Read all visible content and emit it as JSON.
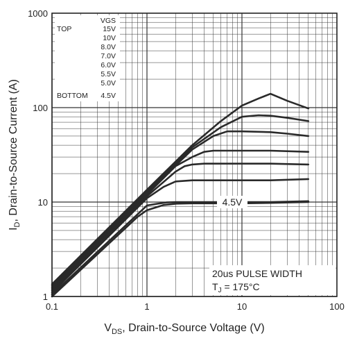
{
  "chart_data": {
    "type": "line",
    "xscale": "log",
    "yscale": "log",
    "xlim": [
      0.1,
      100
    ],
    "ylim": [
      1,
      1000
    ],
    "grid": true,
    "xlabel": {
      "main": "V",
      "sub": "DS",
      "rest": ", Drain-to-Source Voltage (V)"
    },
    "ylabel": {
      "main": "I",
      "sub": "D",
      "rest": ", Drain-to-Source Current (A)"
    },
    "x_ticks": [
      {
        "value": 0.1,
        "label": "0.1"
      },
      {
        "value": 1,
        "label": "1"
      },
      {
        "value": 10,
        "label": "10"
      },
      {
        "value": 100,
        "label": "100"
      }
    ],
    "y_ticks": [
      {
        "value": 1,
        "label": "1"
      },
      {
        "value": 10,
        "label": "10"
      },
      {
        "value": 100,
        "label": "100"
      },
      {
        "value": 1000,
        "label": "1000"
      }
    ],
    "legend": {
      "header": "VGS",
      "top_label": "TOP",
      "bottom_label": "BOTTOM",
      "entries": [
        "15V",
        "10V",
        "8.0V",
        "7.0V",
        "6.0V",
        "5.5V",
        "5.0V",
        "4.5V"
      ]
    },
    "annotations": {
      "curve_label": "4.5V",
      "pulse": "20us PULSE WIDTH",
      "tj": {
        "main": "T",
        "sub": "J",
        "rest": " = 175°C"
      }
    },
    "series": [
      {
        "name": "15V",
        "x": [
          0.1,
          1,
          3,
          6,
          10,
          15,
          20,
          30,
          50
        ],
        "y": [
          1.35,
          13.5,
          40,
          72,
          105,
          125,
          140,
          118,
          98
        ]
      },
      {
        "name": "10V",
        "x": [
          0.1,
          1,
          3,
          6,
          10,
          15,
          20,
          30,
          50
        ],
        "y": [
          1.3,
          13,
          38,
          62,
          80,
          83,
          82,
          78,
          72
        ]
      },
      {
        "name": "8.0V",
        "x": [
          0.1,
          1,
          3,
          5,
          7,
          10,
          20,
          30,
          50
        ],
        "y": [
          1.25,
          12.5,
          36,
          50,
          56,
          56,
          55,
          53,
          50
        ]
      },
      {
        "name": "7.0V",
        "x": [
          0.1,
          1,
          2,
          3,
          4,
          5,
          10,
          20,
          50
        ],
        "y": [
          1.2,
          12,
          24,
          30,
          34,
          35,
          35,
          35,
          34
        ]
      },
      {
        "name": "6.0V",
        "x": [
          0.1,
          1,
          2,
          2.5,
          3,
          4,
          10,
          20,
          50
        ],
        "y": [
          1.15,
          11.5,
          21,
          24,
          25,
          25.5,
          25.5,
          25.5,
          25
        ]
      },
      {
        "name": "5.5V",
        "x": [
          0.1,
          1,
          1.5,
          2,
          3,
          5,
          10,
          20,
          50
        ],
        "y": [
          1.1,
          11,
          14.5,
          16.5,
          17,
          17,
          17,
          17,
          17.5
        ]
      },
      {
        "name": "5.0V",
        "x": [
          0.1,
          1,
          1.3,
          1.6,
          2,
          3,
          10,
          20,
          50
        ],
        "y": [
          1.05,
          9.2,
          9.6,
          9.9,
          10,
          10,
          10,
          10,
          10.2
        ]
      },
      {
        "name": "4.5V",
        "x": [
          0.1,
          0.8,
          1,
          1.5,
          2,
          3,
          10,
          20,
          50
        ],
        "y": [
          1.0,
          7.0,
          8.2,
          9.3,
          9.6,
          9.7,
          9.7,
          9.8,
          10
        ]
      }
    ]
  }
}
